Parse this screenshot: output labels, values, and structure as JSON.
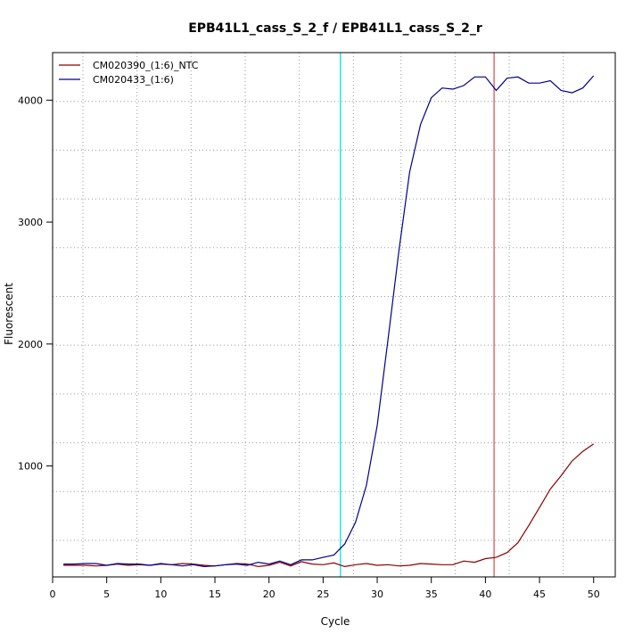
{
  "chart_data": {
    "type": "line",
    "title": "EPB41L1_cass_S_2_f / EPB41L1_cass_S_2_r",
    "xlabel": "Cycle",
    "ylabel": "Fluorescent",
    "xlim": [
      0,
      52
    ],
    "ylim": [
      90,
      4390
    ],
    "x_ticks": [
      0,
      5,
      10,
      15,
      20,
      25,
      30,
      35,
      40,
      45,
      50
    ],
    "y_ticks": [
      1000,
      2000,
      3000,
      4000
    ],
    "grid": true,
    "grid_x": [
      2.8,
      7.8,
      12.8,
      17.8,
      22.8,
      27.8,
      32.2,
      37.2,
      42.2,
      47.2
    ],
    "grid_y": [
      390,
      790,
      1190,
      1590,
      1990,
      2390,
      2790,
      3190,
      3590,
      3990,
      4390
    ],
    "legend_position": "top-left",
    "threshold_lines": [
      {
        "x": 26.6,
        "color": "#00e5e5"
      },
      {
        "x": 40.8,
        "color": "#d65a5a"
      }
    ],
    "series": [
      {
        "name": "CM020390_(1:6)_NTC",
        "color": "#8b0000",
        "x": [
          1,
          2,
          3,
          4,
          5,
          6,
          7,
          8,
          9,
          10,
          11,
          12,
          13,
          14,
          15,
          16,
          17,
          18,
          19,
          20,
          21,
          22,
          23,
          24,
          25,
          26,
          27,
          28,
          29,
          30,
          31,
          32,
          33,
          34,
          35,
          36,
          37,
          38,
          39,
          40,
          41,
          42,
          43,
          44,
          45,
          46,
          47,
          48,
          49,
          50
        ],
        "values": [
          185,
          185,
          185,
          180,
          185,
          195,
          185,
          190,
          185,
          195,
          190,
          200,
          195,
          185,
          180,
          190,
          200,
          195,
          175,
          185,
          210,
          180,
          215,
          195,
          190,
          205,
          175,
          190,
          200,
          185,
          190,
          180,
          185,
          200,
          195,
          190,
          190,
          220,
          210,
          240,
          250,
          290,
          370,
          510,
          660,
          810,
          920,
          1040,
          1120,
          1180
        ]
      },
      {
        "name": "CM020433_(1:6)",
        "color": "#00008b",
        "x": [
          1,
          2,
          3,
          4,
          5,
          6,
          7,
          8,
          9,
          10,
          11,
          12,
          13,
          14,
          15,
          16,
          17,
          18,
          19,
          20,
          21,
          22,
          23,
          24,
          25,
          26,
          27,
          28,
          29,
          30,
          31,
          32,
          33,
          34,
          35,
          36,
          37,
          38,
          39,
          40,
          41,
          42,
          43,
          44,
          45,
          46,
          47,
          48,
          49,
          50
        ],
        "values": [
          195,
          195,
          200,
          200,
          185,
          200,
          195,
          195,
          185,
          200,
          190,
          180,
          190,
          175,
          180,
          190,
          195,
          185,
          210,
          195,
          220,
          190,
          230,
          230,
          250,
          270,
          360,
          540,
          840,
          1330,
          2040,
          2760,
          3410,
          3800,
          4020,
          4100,
          4090,
          4120,
          4190,
          4190,
          4080,
          4180,
          4190,
          4140,
          4140,
          4160,
          4080,
          4060,
          4100,
          4200
        ]
      }
    ]
  }
}
